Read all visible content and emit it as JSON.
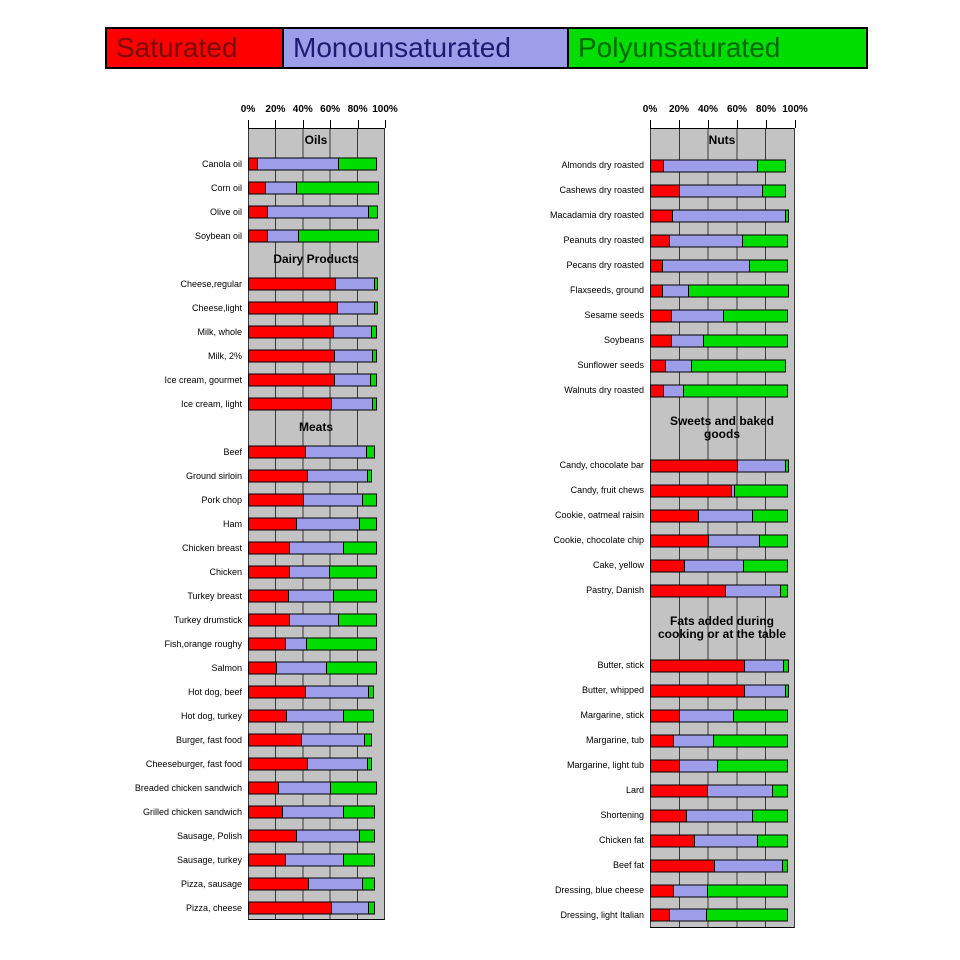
{
  "legend": {
    "items": [
      {
        "label": "Saturated",
        "bg": "#ff0000",
        "fg": "#7a0b0b"
      },
      {
        "label": "Monounsaturated",
        "bg": "#9d9dea",
        "fg": "#1b1b70"
      },
      {
        "label": "Polyunsaturated",
        "bg": "#00dd00",
        "fg": "#006a00"
      }
    ]
  },
  "axis": {
    "ticks": [
      "0%",
      "20%",
      "40%",
      "60%",
      "80%",
      "100%"
    ]
  },
  "colors": {
    "saturated": "#ff0000",
    "monounsaturated": "#9d9dea",
    "polyunsaturated": "#00dd00",
    "plot_bg": "#c3c3c3",
    "gridline": "#3a3a3a"
  },
  "chart_data": {
    "type": "bar",
    "orientation": "horizontal",
    "stacked": true,
    "x_unit": "percent of total fat",
    "xlim": [
      0,
      100
    ],
    "x_ticks": [
      "0%",
      "20%",
      "40%",
      "60%",
      "80%",
      "100%"
    ],
    "grid": true,
    "legend_position": "top",
    "series_names": [
      "Saturated",
      "Monounsaturated",
      "Polyunsaturated"
    ],
    "panels": [
      {
        "groups": [
          {
            "title": "Oils",
            "lines": 1,
            "items": [
              {
                "label": "Canola oil",
                "values": [
                  7,
                  61,
                  28
                ]
              },
              {
                "label": "Corn oil",
                "values": [
                  13,
                  24,
                  61
                ]
              },
              {
                "label": "Olive oil",
                "values": [
                  15,
                  75,
                  7
                ]
              },
              {
                "label": "Soybean oil",
                "values": [
                  15,
                  23,
                  60
                ]
              }
            ]
          },
          {
            "title": "Dairy Products",
            "lines": 1,
            "items": [
              {
                "label": "Cheese,regular",
                "values": [
                  65,
                  29,
                  3
                ]
              },
              {
                "label": "Cheese,light",
                "values": [
                  66,
                  28,
                  3
                ]
              },
              {
                "label": "Milk, whole",
                "values": [
                  63,
                  29,
                  4
                ]
              },
              {
                "label": "Milk, 2%",
                "values": [
                  64,
                  29,
                  3
                ]
              },
              {
                "label": "Ice cream, gourmet",
                "values": [
                  64,
                  27,
                  5
                ]
              },
              {
                "label": "Ice cream, light",
                "values": [
                  62,
                  31,
                  3
                ]
              }
            ]
          },
          {
            "title": "Meats",
            "lines": 1,
            "items": [
              {
                "label": "Beef",
                "values": [
                  43,
                  45,
                  7
                ]
              },
              {
                "label": "Ground sirloin",
                "values": [
                  44,
                  45,
                  4
                ]
              },
              {
                "label": "Pork chop",
                "values": [
                  41,
                  44,
                  11
                ]
              },
              {
                "label": "Ham",
                "values": [
                  36,
                  47,
                  13
                ]
              },
              {
                "label": "Chicken breast",
                "values": [
                  31,
                  40,
                  25
                ]
              },
              {
                "label": "Chicken",
                "values": [
                  31,
                  30,
                  35
                ]
              },
              {
                "label": "Turkey breast",
                "values": [
                  30,
                  34,
                  32
                ]
              },
              {
                "label": "Turkey drumstick",
                "values": [
                  31,
                  37,
                  28
                ]
              },
              {
                "label": "Fish,orange roughy",
                "values": [
                  28,
                  16,
                  52
                ]
              },
              {
                "label": "Salmon",
                "values": [
                  21,
                  38,
                  37
                ]
              },
              {
                "label": "Hot dog, beef",
                "values": [
                  43,
                  47,
                  4
                ]
              },
              {
                "label": "Hot dog, turkey",
                "values": [
                  29,
                  42,
                  23
                ]
              },
              {
                "label": "Burger, fast food",
                "values": [
                  40,
                  47,
                  6
                ]
              },
              {
                "label": "Cheeseburger, fast food",
                "values": [
                  44,
                  45,
                  4
                ]
              },
              {
                "label": "Breaded chicken sandwich",
                "values": [
                  23,
                  39,
                  34
                ]
              },
              {
                "label": "Grilled chicken sandwich",
                "values": [
                  26,
                  45,
                  24
                ]
              },
              {
                "label": "Sausage, Polish",
                "values": [
                  36,
                  47,
                  12
                ]
              },
              {
                "label": "Sausage, turkey",
                "values": [
                  28,
                  43,
                  24
                ]
              },
              {
                "label": "Pizza, sausage",
                "values": [
                  45,
                  40,
                  10
                ]
              },
              {
                "label": "Pizza, cheese",
                "values": [
                  62,
                  28,
                  5
                ]
              }
            ]
          }
        ]
      },
      {
        "groups": [
          {
            "title": "Nuts",
            "lines": 1,
            "items": [
              {
                "label": "Almonds dry roasted",
                "values": [
                  10,
                  66,
                  20
                ]
              },
              {
                "label": "Cashews dry roasted",
                "values": [
                  21,
                  58,
                  17
                ]
              },
              {
                "label": "Macadamia dry roasted",
                "values": [
                  16,
                  79,
                  3
                ]
              },
              {
                "label": "Peanuts dry roasted",
                "values": [
                  14,
                  51,
                  32
                ]
              },
              {
                "label": "Pecans dry roasted",
                "values": [
                  9,
                  61,
                  27
                ]
              },
              {
                "label": "Flaxseeds, ground",
                "values": [
                  9,
                  19,
                  70
                ]
              },
              {
                "label": "Sesame seeds",
                "values": [
                  15,
                  37,
                  45
                ]
              },
              {
                "label": "Soybeans",
                "values": [
                  15,
                  23,
                  59
                ]
              },
              {
                "label": "Sunflower seeds",
                "values": [
                  11,
                  19,
                  66
                ]
              },
              {
                "label": "Walnuts dry roasted",
                "values": [
                  10,
                  14,
                  73
                ]
              }
            ]
          },
          {
            "title": "Sweets and baked goods",
            "lines": 2,
            "items": [
              {
                "label": "Candy, chocolate bar",
                "values": [
                  61,
                  34,
                  3
                ]
              },
              {
                "label": "Candy, fruit chews",
                "values": [
                  57,
                  3,
                  37
                ]
              },
              {
                "label": "Cookie, oatmeal raisin",
                "values": [
                  34,
                  38,
                  25
                ]
              },
              {
                "label": "Cookie, chocolate chip",
                "values": [
                  41,
                  36,
                  20
                ]
              },
              {
                "label": "Cake, yellow",
                "values": [
                  24,
                  42,
                  31
                ]
              },
              {
                "label": "Pastry, Danish",
                "values": [
                  53,
                  39,
                  5
                ]
              }
            ]
          },
          {
            "title": "Fats added during cooking or at the table",
            "lines": 2,
            "items": [
              {
                "label": "Butter, stick",
                "values": [
                  66,
                  28,
                  4
                ]
              },
              {
                "label": "Butter, whipped",
                "values": [
                  66,
                  29,
                  3
                ]
              },
              {
                "label": "Margarine, stick",
                "values": [
                  21,
                  38,
                  38
                ]
              },
              {
                "label": "Margarine, tub",
                "values": [
                  17,
                  28,
                  52
                ]
              },
              {
                "label": "Margarine, light tub",
                "values": [
                  21,
                  27,
                  49
                ]
              },
              {
                "label": "Lard",
                "values": [
                  40,
                  46,
                  11
                ]
              },
              {
                "label": "Shortening",
                "values": [
                  26,
                  46,
                  25
                ]
              },
              {
                "label": "Chicken fat",
                "values": [
                  31,
                  45,
                  21
                ]
              },
              {
                "label": "Beef fat",
                "values": [
                  45,
                  48,
                  4
                ]
              },
              {
                "label": "Dressing, blue cheese",
                "values": [
                  17,
                  24,
                  56
                ]
              },
              {
                "label": "Dressing, light Italian",
                "values": [
                  14,
                  26,
                  57
                ]
              }
            ]
          }
        ]
      }
    ]
  }
}
